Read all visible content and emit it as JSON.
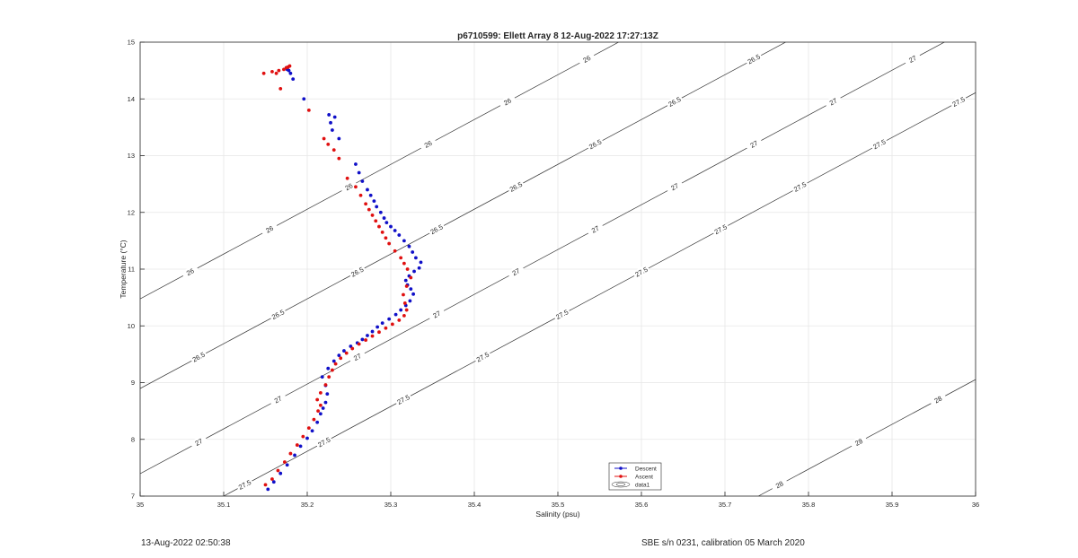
{
  "chart_data": {
    "type": "scatter",
    "title": "p6710599: Ellett Array 8 12-Aug-2022 17:27:13Z",
    "xlabel": "Salinity (psu)",
    "ylabel": "Temperature (°C)",
    "xlim": [
      35,
      36
    ],
    "ylim": [
      7,
      15
    ],
    "xticks": [
      "35",
      "35.1",
      "35.2",
      "35.3",
      "35.4",
      "35.5",
      "35.6",
      "35.7",
      "35.8",
      "35.9",
      "36"
    ],
    "yticks": [
      "7",
      "8",
      "9",
      "10",
      "11",
      "12",
      "13",
      "14",
      "15"
    ],
    "grid": true,
    "legend_position": "bottom-center",
    "legend": [
      "Descent",
      "Ascent",
      "data1"
    ],
    "density_contours": [
      {
        "label": "26",
        "s_at_t7": 34.56
      },
      {
        "label": "26.5",
        "s_at_t7": 34.76
      },
      {
        "label": "27",
        "s_at_t7": 34.95
      },
      {
        "label": "27.5",
        "s_at_t7": 35.1
      },
      {
        "label": "28",
        "s_at_t7": 35.74
      }
    ],
    "series": [
      {
        "name": "Descent",
        "color": "#1010c8",
        "x": [
          35.153,
          35.16,
          35.168,
          35.176,
          35.185,
          35.192,
          35.2,
          35.206,
          35.212,
          35.216,
          35.219,
          35.222,
          35.224,
          35.222,
          35.218,
          35.225,
          35.232,
          35.238,
          35.244,
          35.252,
          35.26,
          35.266,
          35.272,
          35.278,
          35.284,
          35.29,
          35.298,
          35.306,
          35.312,
          35.318,
          35.323,
          35.327,
          35.324,
          35.32,
          35.318,
          35.322,
          35.328,
          35.334,
          35.336,
          35.33,
          35.326,
          35.322,
          35.316,
          35.31,
          35.305,
          35.3,
          35.295,
          35.292,
          35.288,
          35.283,
          35.28,
          35.276,
          35.272,
          35.266,
          35.262,
          35.258,
          35.238,
          35.23,
          35.228,
          35.233,
          35.226,
          35.196,
          35.183,
          35.18,
          35.178,
          35.176,
          35.175
        ],
        "y": [
          7.12,
          7.25,
          7.4,
          7.55,
          7.72,
          7.88,
          8.02,
          8.15,
          8.3,
          8.45,
          8.55,
          8.65,
          8.8,
          8.95,
          9.1,
          9.25,
          9.38,
          9.48,
          9.56,
          9.64,
          9.7,
          9.76,
          9.83,
          9.9,
          9.98,
          10.05,
          10.12,
          10.2,
          10.28,
          10.36,
          10.44,
          10.56,
          10.65,
          10.72,
          10.8,
          10.88,
          10.96,
          11.02,
          11.12,
          11.2,
          11.3,
          11.4,
          11.5,
          11.6,
          11.68,
          11.75,
          11.82,
          11.9,
          12.0,
          12.1,
          12.2,
          12.3,
          12.4,
          12.55,
          12.7,
          12.85,
          13.3,
          13.45,
          13.58,
          13.68,
          13.72,
          14.0,
          14.35,
          14.45,
          14.5,
          14.52,
          14.55
        ]
      },
      {
        "name": "Ascent",
        "color": "#e01010",
        "x": [
          35.15,
          35.158,
          35.165,
          35.173,
          35.18,
          35.188,
          35.195,
          35.202,
          35.208,
          35.213,
          35.216,
          35.212,
          35.216,
          35.222,
          35.226,
          35.23,
          35.234,
          35.24,
          35.247,
          35.254,
          35.262,
          35.27,
          35.278,
          35.286,
          35.294,
          35.302,
          35.31,
          35.316,
          35.319,
          35.317,
          35.315,
          35.319,
          35.324,
          35.32,
          35.316,
          35.312,
          35.305,
          35.298,
          35.294,
          35.29,
          35.286,
          35.282,
          35.278,
          35.274,
          35.27,
          35.264,
          35.258,
          35.248,
          35.238,
          35.232,
          35.225,
          35.22,
          35.202,
          35.168,
          35.163,
          35.148,
          35.158,
          35.166,
          35.172,
          35.175,
          35.177,
          35.179
        ],
        "y": [
          7.2,
          7.3,
          7.45,
          7.6,
          7.75,
          7.9,
          8.05,
          8.2,
          8.35,
          8.5,
          8.6,
          8.7,
          8.82,
          8.96,
          9.1,
          9.22,
          9.33,
          9.43,
          9.52,
          9.6,
          9.68,
          9.75,
          9.82,
          9.89,
          9.96,
          10.03,
          10.1,
          10.18,
          10.28,
          10.4,
          10.55,
          10.7,
          10.85,
          11.0,
          11.1,
          11.2,
          11.32,
          11.45,
          11.55,
          11.65,
          11.75,
          11.85,
          11.95,
          12.05,
          12.15,
          12.3,
          12.45,
          12.6,
          12.95,
          13.1,
          13.2,
          13.3,
          13.8,
          14.18,
          14.45,
          14.45,
          14.48,
          14.5,
          14.52,
          14.55,
          14.56,
          14.58
        ]
      }
    ]
  },
  "footer": {
    "timestamp": "13-Aug-2022 02:50:38",
    "instrument": "SBE s/n 0231, calibration 05 March 2020"
  }
}
